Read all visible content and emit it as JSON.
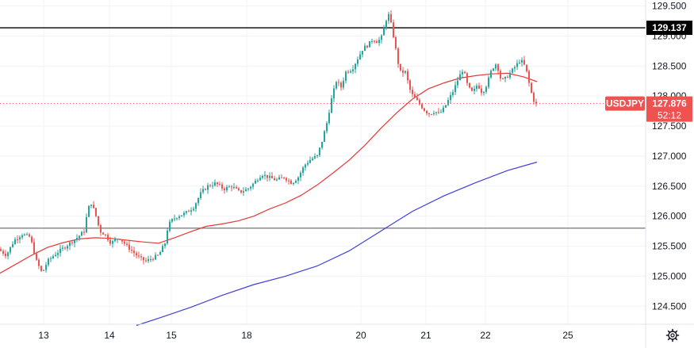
{
  "chart_data": {
    "type": "candlestick",
    "symbol": "USDJPY",
    "last_price": "127.876",
    "countdown": "52:12",
    "colors": {
      "up": "#26a69a",
      "down": "#ef5350",
      "ma_short": "#e53935",
      "ma_long": "#3f3fdd",
      "hline": "#000000",
      "hline2": "#808080",
      "grid": "#f0f3fa",
      "price_line": "#ef5350"
    },
    "y_axis": {
      "min": 124.2,
      "max": 129.6,
      "ticks": [
        "124.500",
        "125.000",
        "125.500",
        "126.000",
        "126.500",
        "127.000",
        "127.500",
        "128.000",
        "128.500",
        "129.000",
        "129.500"
      ]
    },
    "x_axis": {
      "ticks": [
        {
          "label": "13",
          "x": 55
        },
        {
          "label": "14",
          "x": 138
        },
        {
          "label": "15",
          "x": 216
        },
        {
          "label": "18",
          "x": 311
        },
        {
          "label": "20",
          "x": 455
        },
        {
          "label": "21",
          "x": 537
        },
        {
          "label": "22",
          "x": 612
        },
        {
          "label": "25",
          "x": 716
        }
      ]
    },
    "horizontal_lines": [
      {
        "price": 129.137,
        "label": "129.137",
        "color": "#000000"
      },
      {
        "price": 125.8,
        "label": "",
        "color": "#808080"
      }
    ],
    "price_anchors": [
      [
        0,
        125.45
      ],
      [
        10,
        125.35
      ],
      [
        20,
        125.6
      ],
      [
        30,
        125.7
      ],
      [
        40,
        125.65
      ],
      [
        48,
        125.25
      ],
      [
        55,
        125.05
      ],
      [
        62,
        125.25
      ],
      [
        70,
        125.35
      ],
      [
        80,
        125.45
      ],
      [
        90,
        125.55
      ],
      [
        100,
        125.65
      ],
      [
        108,
        125.75
      ],
      [
        112,
        126.05
      ],
      [
        116,
        126.25
      ],
      [
        122,
        126.05
      ],
      [
        128,
        125.75
      ],
      [
        134,
        125.7
      ],
      [
        142,
        125.55
      ],
      [
        152,
        125.65
      ],
      [
        162,
        125.5
      ],
      [
        170,
        125.4
      ],
      [
        178,
        125.3
      ],
      [
        186,
        125.25
      ],
      [
        194,
        125.3
      ],
      [
        202,
        125.35
      ],
      [
        210,
        125.55
      ],
      [
        214,
        125.85
      ],
      [
        220,
        125.95
      ],
      [
        226,
        126.0
      ],
      [
        236,
        126.05
      ],
      [
        246,
        126.15
      ],
      [
        256,
        126.4
      ],
      [
        264,
        126.5
      ],
      [
        274,
        126.55
      ],
      [
        284,
        126.45
      ],
      [
        294,
        126.5
      ],
      [
        304,
        126.4
      ],
      [
        314,
        126.45
      ],
      [
        322,
        126.55
      ],
      [
        332,
        126.7
      ],
      [
        340,
        126.65
      ],
      [
        350,
        126.6
      ],
      [
        360,
        126.65
      ],
      [
        370,
        126.55
      ],
      [
        378,
        126.65
      ],
      [
        386,
        126.85
      ],
      [
        394,
        126.95
      ],
      [
        402,
        127.0
      ],
      [
        408,
        127.25
      ],
      [
        414,
        127.55
      ],
      [
        420,
        127.95
      ],
      [
        426,
        128.25
      ],
      [
        432,
        128.15
      ],
      [
        438,
        128.4
      ],
      [
        446,
        128.45
      ],
      [
        454,
        128.65
      ],
      [
        460,
        128.8
      ],
      [
        466,
        128.85
      ],
      [
        472,
        128.95
      ],
      [
        478,
        128.9
      ],
      [
        484,
        129.0
      ],
      [
        488,
        129.25
      ],
      [
        492,
        129.35
      ],
      [
        496,
        129.15
      ],
      [
        500,
        128.85
      ],
      [
        504,
        128.55
      ],
      [
        508,
        128.35
      ],
      [
        512,
        128.45
      ],
      [
        516,
        128.25
      ],
      [
        520,
        128.05
      ],
      [
        526,
        127.95
      ],
      [
        532,
        127.85
      ],
      [
        538,
        127.75
      ],
      [
        544,
        127.7
      ],
      [
        550,
        127.75
      ],
      [
        556,
        127.7
      ],
      [
        562,
        127.8
      ],
      [
        568,
        127.95
      ],
      [
        574,
        128.1
      ],
      [
        580,
        128.3
      ],
      [
        586,
        128.45
      ],
      [
        592,
        128.15
      ],
      [
        598,
        128.05
      ],
      [
        604,
        128.2
      ],
      [
        610,
        128.05
      ],
      [
        616,
        128.2
      ],
      [
        622,
        128.45
      ],
      [
        628,
        128.55
      ],
      [
        634,
        128.25
      ],
      [
        640,
        128.3
      ],
      [
        646,
        128.4
      ],
      [
        652,
        128.5
      ],
      [
        658,
        128.6
      ],
      [
        662,
        128.55
      ],
      [
        666,
        128.4
      ],
      [
        670,
        128.15
      ],
      [
        674,
        127.95
      ],
      [
        677,
        127.876
      ]
    ],
    "ma_short": [
      [
        0,
        125.05
      ],
      [
        20,
        125.2
      ],
      [
        40,
        125.35
      ],
      [
        60,
        125.48
      ],
      [
        80,
        125.56
      ],
      [
        100,
        125.62
      ],
      [
        120,
        125.64
      ],
      [
        140,
        125.63
      ],
      [
        160,
        125.6
      ],
      [
        180,
        125.57
      ],
      [
        200,
        125.55
      ],
      [
        220,
        125.64
      ],
      [
        240,
        125.74
      ],
      [
        260,
        125.83
      ],
      [
        280,
        125.87
      ],
      [
        300,
        125.92
      ],
      [
        320,
        126.0
      ],
      [
        340,
        126.12
      ],
      [
        360,
        126.22
      ],
      [
        380,
        126.35
      ],
      [
        400,
        126.52
      ],
      [
        420,
        126.72
      ],
      [
        440,
        126.93
      ],
      [
        460,
        127.18
      ],
      [
        480,
        127.46
      ],
      [
        500,
        127.72
      ],
      [
        520,
        127.95
      ],
      [
        540,
        128.12
      ],
      [
        560,
        128.22
      ],
      [
        580,
        128.3
      ],
      [
        600,
        128.34
      ],
      [
        620,
        128.37
      ],
      [
        640,
        128.38
      ],
      [
        660,
        128.32
      ],
      [
        677,
        128.24
      ]
    ],
    "ma_long": [
      [
        172,
        124.18
      ],
      [
        200,
        124.3
      ],
      [
        240,
        124.48
      ],
      [
        280,
        124.68
      ],
      [
        320,
        124.86
      ],
      [
        360,
        125.0
      ],
      [
        400,
        125.17
      ],
      [
        440,
        125.42
      ],
      [
        480,
        125.75
      ],
      [
        520,
        126.08
      ],
      [
        560,
        126.34
      ],
      [
        600,
        126.56
      ],
      [
        640,
        126.76
      ],
      [
        677,
        126.9
      ]
    ]
  }
}
